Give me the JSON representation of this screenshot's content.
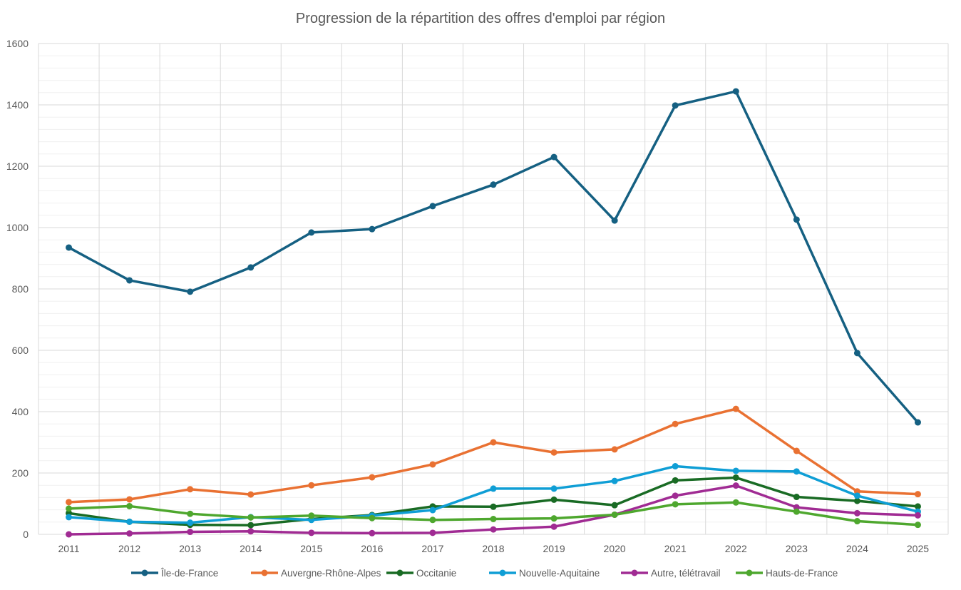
{
  "chart_data": {
    "type": "line",
    "title": "Progression de la répartition des offres d'emploi par région",
    "xlabel": "",
    "ylabel": "",
    "ylim": [
      0,
      1600
    ],
    "yticks": [
      0,
      200,
      400,
      600,
      800,
      1000,
      1200,
      1400,
      1600
    ],
    "grid": true,
    "legend": "bottom",
    "categories": [
      "2011",
      "2012",
      "2013",
      "2014",
      "2015",
      "2016",
      "2017",
      "2018",
      "2019",
      "2020",
      "2021",
      "2022",
      "2023",
      "2024",
      "2025"
    ],
    "series": [
      {
        "name": "Île-de-France",
        "color": "#156082",
        "values": [
          935,
          828,
          791,
          870,
          984,
          995,
          1070,
          1140,
          1230,
          1023,
          1398,
          1444,
          1026,
          591,
          365
        ]
      },
      {
        "name": "Auvergne-Rhône-Alpes",
        "color": "#E97132",
        "values": [
          105,
          114,
          147,
          130,
          160,
          186,
          228,
          300,
          267,
          277,
          360,
          409,
          272,
          140,
          131
        ]
      },
      {
        "name": "Occitanie",
        "color": "#196B24",
        "values": [
          69,
          41,
          31,
          30,
          50,
          63,
          91,
          90,
          113,
          95,
          176,
          185,
          122,
          109,
          91
        ]
      },
      {
        "name": "Nouvelle-Aquitaine",
        "color": "#0F9ED5",
        "values": [
          56,
          41,
          38,
          56,
          47,
          61,
          79,
          149,
          149,
          174,
          222,
          207,
          205,
          126,
          74
        ]
      },
      {
        "name": "Autre, télétravail",
        "color": "#A02B93",
        "values": [
          0,
          3,
          8,
          10,
          5,
          4,
          5,
          16,
          25,
          64,
          126,
          159,
          88,
          69,
          62
        ]
      },
      {
        "name": "Hauts-de-France",
        "color": "#4EA72E",
        "values": [
          84,
          92,
          67,
          55,
          61,
          53,
          47,
          50,
          52,
          64,
          98,
          104,
          74,
          43,
          31
        ]
      }
    ]
  }
}
